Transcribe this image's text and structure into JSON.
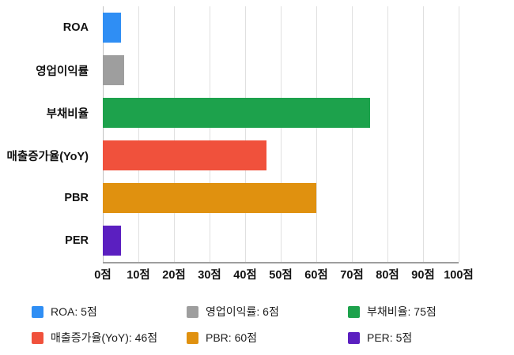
{
  "chart_data": {
    "type": "bar",
    "orientation": "horizontal",
    "title": "",
    "unit": "점",
    "categories": [
      "ROA",
      "영업이익률",
      "부채비율",
      "매출증가율(YoY)",
      "PBR",
      "PER"
    ],
    "values": [
      5,
      6,
      75,
      46,
      60,
      5
    ],
    "colors": [
      "#2f8ef4",
      "#9e9e9e",
      "#1da24c",
      "#f0513c",
      "#e0910f",
      "#5b1fc0"
    ],
    "xlim": [
      0,
      100
    ],
    "x_ticks": [
      0,
      10,
      20,
      30,
      40,
      50,
      60,
      70,
      80,
      90,
      100
    ],
    "x_tick_labels": [
      "0점",
      "10점",
      "20점",
      "30점",
      "40점",
      "50점",
      "60점",
      "70점",
      "80점",
      "90점",
      "100점"
    ],
    "grid": true,
    "legend_position": "bottom",
    "legend": [
      {
        "label": "ROA: 5점",
        "color": "#2f8ef4"
      },
      {
        "label": "영업이익률: 6점",
        "color": "#9e9e9e"
      },
      {
        "label": "부채비율: 75점",
        "color": "#1da24c"
      },
      {
        "label": "매출증가율(YoY): 46점",
        "color": "#f0513c"
      },
      {
        "label": "PBR: 60점",
        "color": "#e0910f"
      },
      {
        "label": "PER: 5점",
        "color": "#5b1fc0"
      }
    ]
  }
}
